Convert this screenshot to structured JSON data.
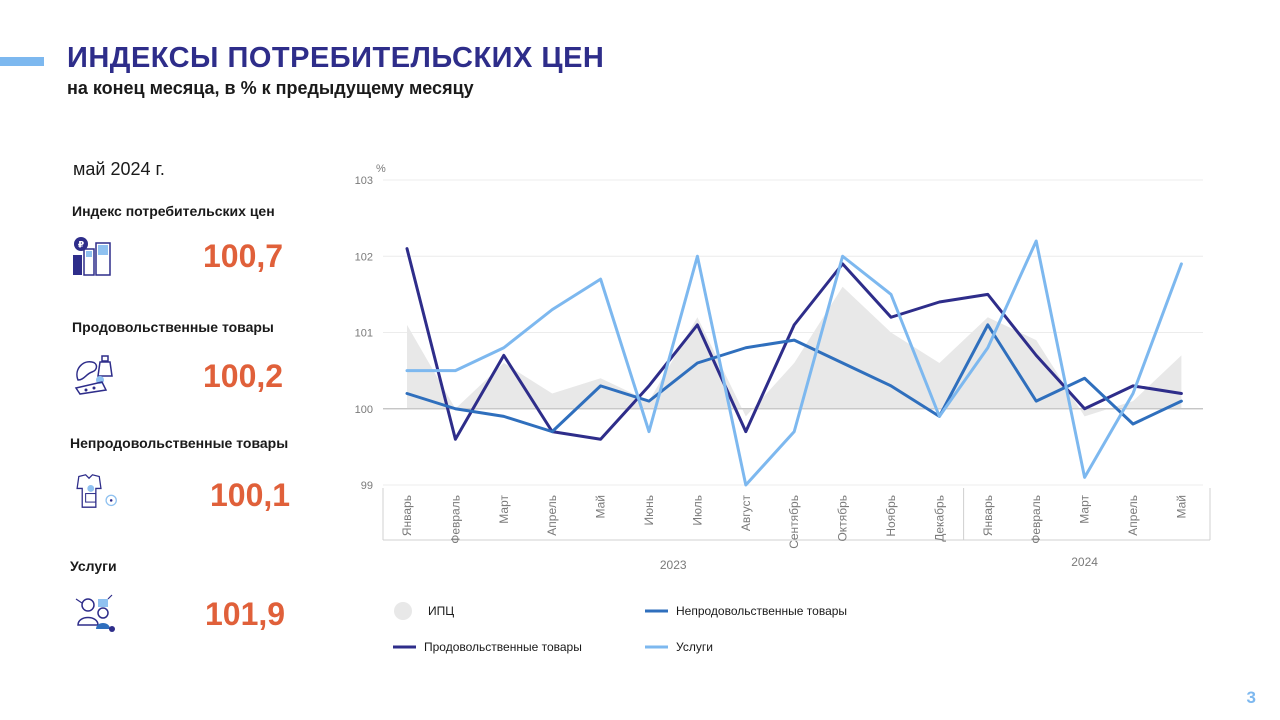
{
  "header": {
    "title": "ИНДЕКСЫ ПОТРЕБИТЕЛЬСКИХ  ЦЕН",
    "subtitle": "на конец месяца, в % к предыдущему месяцу"
  },
  "summary": {
    "period": "май 2024 г.",
    "items": [
      {
        "label": "Индекс потребительских цен",
        "value": "100,7",
        "icon": "price-index-icon"
      },
      {
        "label": "Продовольственные товары",
        "value": "100,2",
        "icon": "food-goods-icon"
      },
      {
        "label": "Непродовольственные товары",
        "value": "100,1",
        "icon": "non-food-goods-icon"
      },
      {
        "label": "Услуги",
        "value": "101,9",
        "icon": "services-icon"
      }
    ]
  },
  "chart_data": {
    "type": "line",
    "ylabel": "%",
    "ylim": [
      99,
      103
    ],
    "yticks": [
      "99",
      "100",
      "101",
      "102",
      "103"
    ],
    "categories": [
      "Январь",
      "Февраль",
      "Март",
      "Апрель",
      "Май",
      "Июнь",
      "Июль",
      "Август",
      "Сентябрь",
      "Октябрь",
      "Ноябрь",
      "Декабрь",
      "Январь",
      "Февраль",
      "Март",
      "Апрель",
      "Май"
    ],
    "year_groups": [
      {
        "label": "2023",
        "start": 0,
        "end": 11
      },
      {
        "label": "2024",
        "start": 12,
        "end": 16
      }
    ],
    "series": [
      {
        "name": "ИПЦ",
        "kind": "area",
        "color": "#e8e8e8",
        "values": [
          101.1,
          100.0,
          100.6,
          100.2,
          100.4,
          100.1,
          101.2,
          99.9,
          100.6,
          101.6,
          101.0,
          100.6,
          101.2,
          100.9,
          99.9,
          100.1,
          100.7
        ]
      },
      {
        "name": "Продовольственные  товары",
        "kind": "line",
        "color": "#2e2d8a",
        "values": [
          102.1,
          99.6,
          100.7,
          99.7,
          99.6,
          100.3,
          101.1,
          99.7,
          101.1,
          101.9,
          101.2,
          101.4,
          101.5,
          100.7,
          100.0,
          100.3,
          100.2
        ]
      },
      {
        "name": "Непродовольственные  товары",
        "kind": "line",
        "color": "#2f6fbd",
        "values": [
          100.2,
          100.0,
          99.9,
          99.7,
          100.3,
          100.1,
          100.6,
          100.8,
          100.9,
          100.6,
          100.3,
          99.9,
          101.1,
          100.1,
          100.4,
          99.8,
          100.1
        ]
      },
      {
        "name": "Услуги",
        "kind": "line",
        "color": "#7db8ef",
        "values": [
          100.5,
          100.5,
          100.8,
          101.3,
          101.7,
          99.7,
          102.0,
          99.0,
          99.7,
          102.0,
          101.5,
          99.9,
          100.8,
          102.2,
          99.1,
          100.2,
          101.9
        ]
      }
    ],
    "legend_position": "bottom"
  },
  "page_number": "3"
}
